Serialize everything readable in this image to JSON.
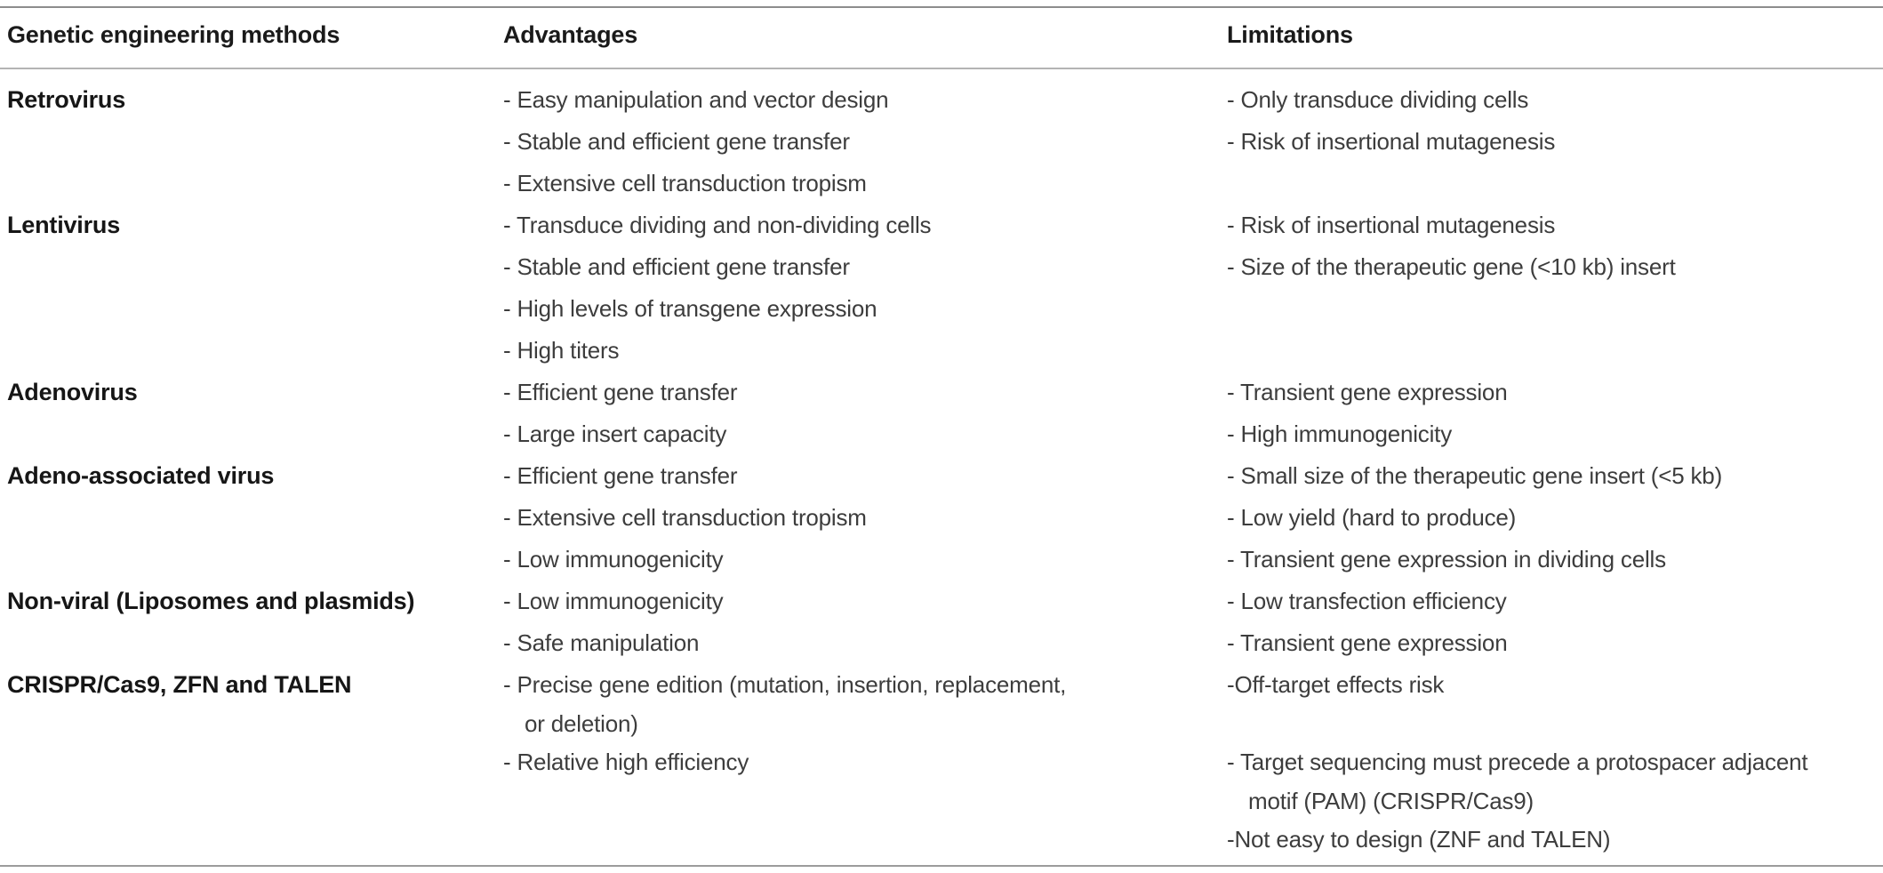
{
  "table": {
    "columns": [
      {
        "label": "Genetic engineering methods"
      },
      {
        "label": "Advantages"
      },
      {
        "label": "Limitations"
      }
    ],
    "rows": [
      {
        "method": "Retrovirus",
        "lines": [
          {
            "adv": "- Easy manipulation and vector design",
            "lim": "- Only transduce dividing cells"
          },
          {
            "adv": "- Stable and efficient gene transfer",
            "lim": "- Risk of insertional mutagenesis"
          },
          {
            "adv": "- Extensive cell transduction tropism",
            "lim": ""
          }
        ]
      },
      {
        "method": "Lentivirus",
        "lines": [
          {
            "adv": "- Transduce dividing and non-dividing cells",
            "lim": "- Risk of insertional mutagenesis"
          },
          {
            "adv": "- Stable and efficient gene transfer",
            "lim": "- Size of the therapeutic gene (<10 kb) insert"
          },
          {
            "adv": "- High levels of transgene expression",
            "lim": ""
          },
          {
            "adv": "- High titers",
            "lim": ""
          }
        ]
      },
      {
        "method": "Adenovirus",
        "lines": [
          {
            "adv": "- Efficient gene transfer",
            "lim": "- Transient gene expression"
          },
          {
            "adv": "- Large insert capacity",
            "lim": "- High immunogenicity"
          }
        ]
      },
      {
        "method": "Adeno-associated virus",
        "lines": [
          {
            "adv": "- Efficient gene transfer",
            "lim": "- Small size of the therapeutic gene insert (<5 kb)"
          },
          {
            "adv": "- Extensive cell transduction tropism",
            "lim": "- Low yield (hard to produce)"
          },
          {
            "adv": "- Low immunogenicity",
            "lim": "- Transient gene expression in dividing cells"
          }
        ]
      },
      {
        "method": "Non-viral (Liposomes and plasmids)",
        "lines": [
          {
            "adv": "- Low immunogenicity",
            "lim": "- Low transfection efficiency"
          },
          {
            "adv": "- Safe manipulation",
            "lim": "- Transient gene expression"
          }
        ]
      },
      {
        "method": "CRISPR/Cas9, ZFN and TALEN",
        "lines": [
          {
            "adv": "- Precise gene edition (mutation, insertion, replacement,",
            "lim": "-Off-target effects risk"
          },
          {
            "adv": "or deletion)",
            "lim": "",
            "cont": true,
            "adv_indent": true
          },
          {
            "adv": "- Relative high efficiency",
            "lim": "- Target sequencing must precede a protospacer adjacent"
          },
          {
            "adv": "",
            "lim": "motif (PAM) (CRISPR/Cas9)",
            "cont": true,
            "lim_indent": true
          },
          {
            "adv": "",
            "lim": "-Not easy to design (ZNF and TALEN)"
          }
        ]
      }
    ]
  }
}
